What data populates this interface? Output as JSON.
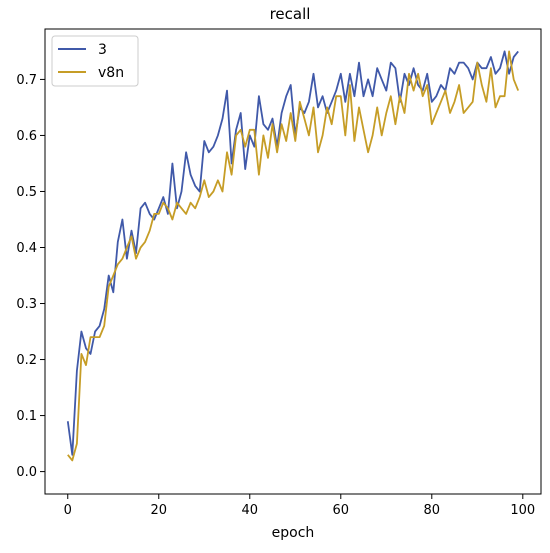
{
  "chart_data": {
    "type": "line",
    "title": "recall",
    "xlabel": "epoch",
    "ylabel": "",
    "xlim": [
      -5,
      104
    ],
    "ylim": [
      -0.04,
      0.79
    ],
    "xticks": [
      0,
      20,
      40,
      60,
      80,
      100
    ],
    "yticks": [
      0.0,
      0.1,
      0.2,
      0.3,
      0.4,
      0.5,
      0.6,
      0.7
    ],
    "grid": false,
    "legend": "top-left",
    "series": [
      {
        "name": "3",
        "color": "#4059a9",
        "x": [
          0,
          1,
          2,
          3,
          4,
          5,
          6,
          7,
          8,
          9,
          10,
          11,
          12,
          13,
          14,
          15,
          16,
          17,
          18,
          19,
          20,
          21,
          22,
          23,
          24,
          25,
          26,
          27,
          28,
          29,
          30,
          31,
          32,
          33,
          34,
          35,
          36,
          37,
          38,
          39,
          40,
          41,
          42,
          43,
          44,
          45,
          46,
          47,
          48,
          49,
          50,
          51,
          52,
          53,
          54,
          55,
          56,
          57,
          58,
          59,
          60,
          61,
          62,
          63,
          64,
          65,
          66,
          67,
          68,
          69,
          70,
          71,
          72,
          73,
          74,
          75,
          76,
          77,
          78,
          79,
          80,
          81,
          82,
          83,
          84,
          85,
          86,
          87,
          88,
          89,
          90,
          91,
          92,
          93,
          94,
          95,
          96,
          97,
          98,
          99
        ],
        "y": [
          0.09,
          0.03,
          0.18,
          0.25,
          0.22,
          0.21,
          0.25,
          0.26,
          0.29,
          0.35,
          0.32,
          0.41,
          0.45,
          0.38,
          0.43,
          0.39,
          0.47,
          0.48,
          0.46,
          0.45,
          0.47,
          0.49,
          0.46,
          0.55,
          0.47,
          0.5,
          0.57,
          0.53,
          0.51,
          0.5,
          0.59,
          0.57,
          0.58,
          0.6,
          0.63,
          0.68,
          0.55,
          0.61,
          0.64,
          0.54,
          0.6,
          0.58,
          0.67,
          0.62,
          0.61,
          0.63,
          0.58,
          0.64,
          0.67,
          0.69,
          0.6,
          0.65,
          0.64,
          0.66,
          0.71,
          0.65,
          0.67,
          0.64,
          0.66,
          0.68,
          0.71,
          0.66,
          0.71,
          0.67,
          0.73,
          0.67,
          0.7,
          0.67,
          0.72,
          0.7,
          0.68,
          0.73,
          0.72,
          0.66,
          0.71,
          0.69,
          0.72,
          0.69,
          0.68,
          0.71,
          0.66,
          0.67,
          0.69,
          0.68,
          0.72,
          0.71,
          0.73,
          0.73,
          0.72,
          0.7,
          0.73,
          0.72,
          0.72,
          0.74,
          0.71,
          0.72,
          0.75,
          0.71,
          0.74,
          0.75
        ]
      },
      {
        "name": "v8n",
        "color": "#c69d26",
        "x": [
          0,
          1,
          2,
          3,
          4,
          5,
          6,
          7,
          8,
          9,
          10,
          11,
          12,
          13,
          14,
          15,
          16,
          17,
          18,
          19,
          20,
          21,
          22,
          23,
          24,
          25,
          26,
          27,
          28,
          29,
          30,
          31,
          32,
          33,
          34,
          35,
          36,
          37,
          38,
          39,
          40,
          41,
          42,
          43,
          44,
          45,
          46,
          47,
          48,
          49,
          50,
          51,
          52,
          53,
          54,
          55,
          56,
          57,
          58,
          59,
          60,
          61,
          62,
          63,
          64,
          65,
          66,
          67,
          68,
          69,
          70,
          71,
          72,
          73,
          74,
          75,
          76,
          77,
          78,
          79,
          80,
          81,
          82,
          83,
          84,
          85,
          86,
          87,
          88,
          89,
          90,
          91,
          92,
          93,
          94,
          95,
          96,
          97,
          98,
          99
        ],
        "y": [
          0.03,
          0.02,
          0.05,
          0.21,
          0.19,
          0.24,
          0.24,
          0.24,
          0.26,
          0.33,
          0.35,
          0.37,
          0.38,
          0.4,
          0.42,
          0.38,
          0.4,
          0.41,
          0.43,
          0.46,
          0.46,
          0.48,
          0.47,
          0.45,
          0.48,
          0.47,
          0.46,
          0.48,
          0.47,
          0.49,
          0.52,
          0.49,
          0.5,
          0.52,
          0.5,
          0.57,
          0.53,
          0.6,
          0.61,
          0.58,
          0.61,
          0.61,
          0.53,
          0.6,
          0.56,
          0.62,
          0.57,
          0.62,
          0.59,
          0.64,
          0.59,
          0.66,
          0.63,
          0.6,
          0.65,
          0.57,
          0.6,
          0.65,
          0.62,
          0.67,
          0.67,
          0.6,
          0.69,
          0.59,
          0.65,
          0.61,
          0.57,
          0.6,
          0.65,
          0.6,
          0.64,
          0.67,
          0.62,
          0.67,
          0.64,
          0.71,
          0.68,
          0.71,
          0.67,
          0.69,
          0.62,
          0.64,
          0.66,
          0.68,
          0.64,
          0.66,
          0.69,
          0.64,
          0.65,
          0.66,
          0.73,
          0.69,
          0.66,
          0.72,
          0.65,
          0.67,
          0.67,
          0.75,
          0.7,
          0.68
        ]
      }
    ]
  }
}
